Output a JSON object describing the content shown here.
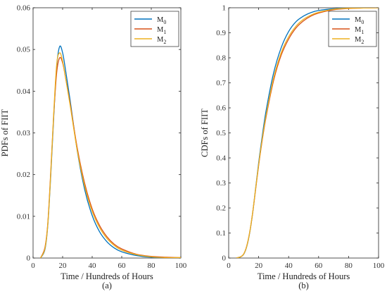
{
  "chart_data": [
    {
      "type": "line",
      "panel_label": "(a)",
      "xlabel": "Time / Hundreds of Hours",
      "ylabel": "PDFs of FIIT",
      "xlim": [
        0,
        100
      ],
      "ylim": [
        0,
        0.06
      ],
      "xticks": [
        "0",
        "20",
        "40",
        "60",
        "80",
        "100"
      ],
      "yticks": [
        "0",
        "0.01",
        "0.02",
        "0.03",
        "0.04",
        "0.05",
        "0.06"
      ],
      "grid": false,
      "legend": {
        "placement": "top-right"
      },
      "series": [
        {
          "name": "M",
          "sub": "0",
          "color": "#0072BD",
          "x": [
            5,
            8,
            10,
            12,
            14,
            16,
            18,
            20,
            22,
            25,
            30,
            35,
            40,
            45,
            50,
            55,
            60,
            70,
            80,
            90,
            100
          ],
          "y": [
            0,
            0.002,
            0.008,
            0.02,
            0.034,
            0.046,
            0.0507,
            0.0492,
            0.045,
            0.038,
            0.0255,
            0.0163,
            0.0102,
            0.0063,
            0.0039,
            0.0024,
            0.0015,
            0.0006,
            0.0002,
            0.0001,
            0
          ]
        },
        {
          "name": "M",
          "sub": "1",
          "color": "#D95319",
          "x": [
            5,
            8,
            10,
            12,
            14,
            16,
            18,
            20,
            22,
            25,
            30,
            35,
            40,
            45,
            50,
            55,
            60,
            70,
            80,
            90,
            100
          ],
          "y": [
            0,
            0.0025,
            0.0085,
            0.021,
            0.0345,
            0.0445,
            0.048,
            0.0468,
            0.0432,
            0.0372,
            0.0262,
            0.0178,
            0.0118,
            0.0078,
            0.0051,
            0.0033,
            0.0022,
            0.0009,
            0.0004,
            0.0002,
            0.0001
          ]
        },
        {
          "name": "M",
          "sub": "2",
          "color": "#EDB120",
          "x": [
            5,
            8,
            10,
            12,
            14,
            16,
            18,
            20,
            22,
            25,
            30,
            35,
            40,
            45,
            50,
            55,
            60,
            70,
            80,
            90,
            100
          ],
          "y": [
            0,
            0.0022,
            0.0082,
            0.0205,
            0.035,
            0.0465,
            0.0492,
            0.0472,
            0.0432,
            0.0368,
            0.0256,
            0.0171,
            0.0112,
            0.0073,
            0.0047,
            0.003,
            0.0019,
            0.0008,
            0.0003,
            0.0001,
            0.0001
          ]
        }
      ]
    },
    {
      "type": "line",
      "panel_label": "(b)",
      "xlabel": "Time / Hundreds of Hours",
      "ylabel": "CDFs of FIIT",
      "xlim": [
        0,
        100
      ],
      "ylim": [
        0,
        1
      ],
      "xticks": [
        "0",
        "20",
        "40",
        "60",
        "80",
        "100"
      ],
      "yticks": [
        "0",
        "0.1",
        "0.2",
        "0.3",
        "0.4",
        "0.5",
        "0.6",
        "0.7",
        "0.8",
        "0.9",
        "1"
      ],
      "grid": false,
      "legend": {
        "placement": "top-right"
      },
      "series": [
        {
          "name": "M",
          "sub": "0",
          "color": "#0072BD",
          "x": [
            5,
            8,
            10,
            12,
            14,
            16,
            18,
            20,
            22,
            25,
            30,
            35,
            40,
            45,
            50,
            55,
            60,
            70,
            80,
            90,
            100
          ],
          "y": [
            0,
            0.005,
            0.015,
            0.045,
            0.1,
            0.18,
            0.28,
            0.38,
            0.47,
            0.59,
            0.74,
            0.84,
            0.905,
            0.945,
            0.967,
            0.981,
            0.989,
            0.996,
            0.999,
            1,
            1
          ]
        },
        {
          "name": "M",
          "sub": "1",
          "color": "#D95319",
          "x": [
            5,
            8,
            10,
            12,
            14,
            16,
            18,
            20,
            22,
            25,
            30,
            35,
            40,
            45,
            50,
            55,
            60,
            70,
            80,
            90,
            100
          ],
          "y": [
            0,
            0.005,
            0.016,
            0.047,
            0.102,
            0.18,
            0.275,
            0.37,
            0.455,
            0.565,
            0.71,
            0.81,
            0.875,
            0.92,
            0.948,
            0.967,
            0.979,
            0.992,
            0.997,
            0.999,
            1
          ]
        },
        {
          "name": "M",
          "sub": "2",
          "color": "#EDB120",
          "x": [
            5,
            8,
            10,
            12,
            14,
            16,
            18,
            20,
            22,
            25,
            30,
            35,
            40,
            45,
            50,
            55,
            60,
            70,
            80,
            90,
            100
          ],
          "y": [
            0,
            0.005,
            0.016,
            0.046,
            0.102,
            0.182,
            0.278,
            0.373,
            0.46,
            0.572,
            0.72,
            0.82,
            0.884,
            0.927,
            0.954,
            0.971,
            0.982,
            0.994,
            0.998,
            0.999,
            1
          ]
        }
      ]
    }
  ]
}
